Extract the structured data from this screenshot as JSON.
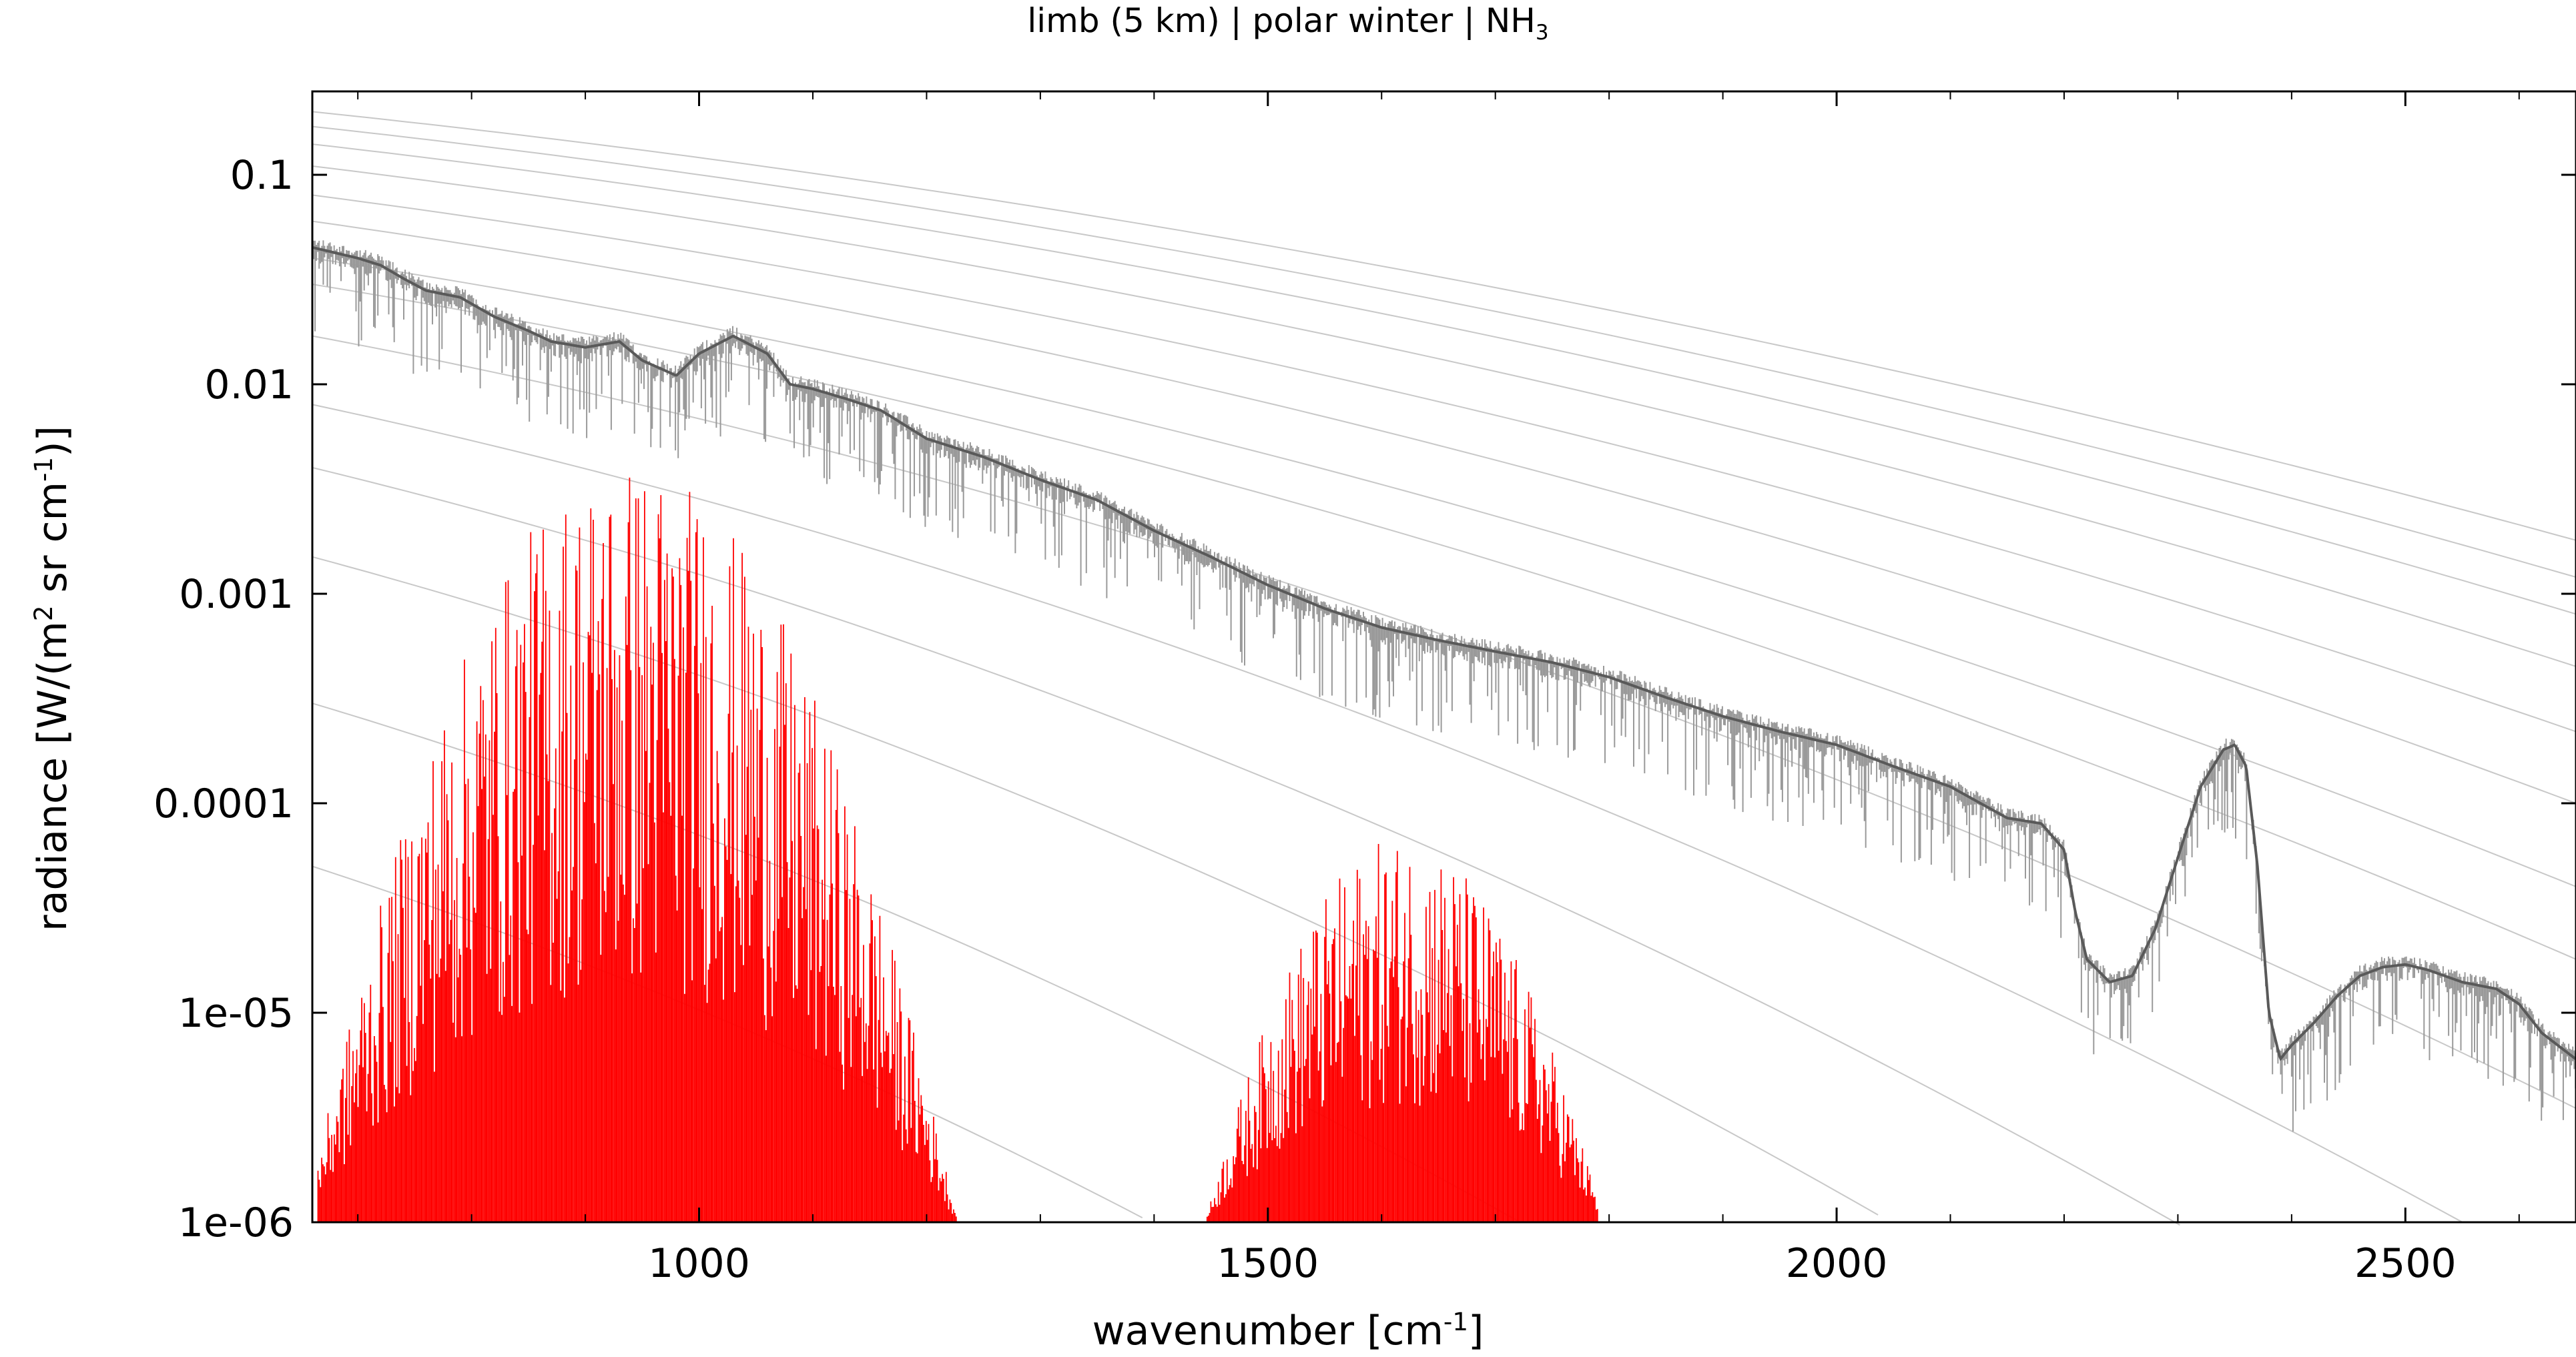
{
  "title": {
    "main": "limb (5 km) | polar winter | NH",
    "sub": "3"
  },
  "xlabel": {
    "main": "wavenumber [cm",
    "sup": "-1",
    "end": "]"
  },
  "ylabel": {
    "main": "radiance [W/(m",
    "sup1": "2",
    "mid": " sr cm",
    "sup2": "-1",
    "end": ")]"
  },
  "colors": {
    "spectrum_dark": "#595959",
    "spectrum_light": "#9a9a9a",
    "nh3_contribution": "#ff0000",
    "planck_curves": "#c8c8c8",
    "axis": "#000000"
  },
  "chart_data": {
    "type": "line",
    "x_scale": "linear",
    "y_scale": "log",
    "xlim": [
      660,
      2650
    ],
    "ylim": [
      1e-06,
      0.25
    ],
    "grid": false,
    "x_ticks": [
      {
        "value": 1000,
        "label": "1000"
      },
      {
        "value": 1500,
        "label": "1500"
      },
      {
        "value": 2000,
        "label": "2000"
      },
      {
        "value": 2500,
        "label": "2500"
      }
    ],
    "y_ticks": [
      {
        "value": 0.1,
        "label": "0.1"
      },
      {
        "value": 0.01,
        "label": "0.01"
      },
      {
        "value": 0.001,
        "label": "0.001"
      },
      {
        "value": 0.0001,
        "label": "0.0001"
      },
      {
        "value": 1e-05,
        "label": "1e-05"
      },
      {
        "value": 1e-06,
        "label": "1e-06"
      }
    ],
    "series": [
      {
        "role": "total radiance (dark)",
        "x": [
          660,
          700,
          720,
          740,
          760,
          790,
          820,
          850,
          870,
          900,
          930,
          950,
          980,
          1000,
          1030,
          1060,
          1080,
          1100,
          1130,
          1160,
          1200,
          1250,
          1300,
          1350,
          1400,
          1450,
          1500,
          1550,
          1580,
          1600,
          1650,
          1700,
          1750,
          1800,
          1850,
          1900,
          1950,
          2000,
          2050,
          2100,
          2150,
          2180,
          2200,
          2210,
          2220,
          2240,
          2260,
          2280,
          2300,
          2320,
          2340,
          2350,
          2360,
          2370,
          2380,
          2390,
          2400,
          2420,
          2440,
          2460,
          2480,
          2500,
          2520,
          2550,
          2580,
          2600,
          2620,
          2650
        ],
        "y": [
          0.045,
          0.04,
          0.037,
          0.032,
          0.028,
          0.026,
          0.021,
          0.018,
          0.016,
          0.015,
          0.016,
          0.013,
          0.011,
          0.014,
          0.017,
          0.014,
          0.01,
          0.0095,
          0.0085,
          0.0075,
          0.0055,
          0.0045,
          0.0035,
          0.0028,
          0.002,
          0.0015,
          0.0011,
          0.00085,
          0.00075,
          0.00069,
          0.0006,
          0.00053,
          0.00047,
          0.0004,
          0.00032,
          0.00026,
          0.00022,
          0.00019,
          0.00015,
          0.00012,
          8.5e-05,
          8e-05,
          6e-05,
          3e-05,
          1.8e-05,
          1.4e-05,
          1.5e-05,
          2.5e-05,
          5.5e-05,
          0.00012,
          0.00018,
          0.00019,
          0.00015,
          5e-05,
          1e-05,
          6e-06,
          7e-06,
          9e-06,
          1.2e-05,
          1.5e-05,
          1.65e-05,
          1.7e-05,
          1.6e-05,
          1.4e-05,
          1.3e-05,
          1.1e-05,
          8e-06,
          6e-06
        ]
      },
      {
        "role": "NH3 contribution (red)",
        "bands": [
          {
            "x_range": [
              665,
              1240
            ],
            "center": 940,
            "peak": 0.0045,
            "floor": 1e-06
          },
          {
            "x_range": [
              1440,
              1790
            ],
            "center": 1620,
            "peak": 7e-05,
            "floor": 1e-06
          }
        ]
      },
      {
        "role": "reference curves (gray)",
        "curves": [
          {
            "y_at_660": 0.2,
            "y_at_2650": 0.0018
          },
          {
            "y_at_660": 0.17,
            "y_at_2650": 0.0012
          },
          {
            "y_at_660": 0.14,
            "y_at_2650": 0.0008
          },
          {
            "y_at_660": 0.11,
            "y_at_2650": 0.00045
          },
          {
            "y_at_660": 0.08,
            "y_at_2650": 0.00022
          },
          {
            "y_at_660": 0.06,
            "y_at_2650": 0.0001
          },
          {
            "y_at_660": 0.04,
            "y_at_2650": 4e-05
          },
          {
            "y_at_660": 0.03,
            "y_at_2650": 1.8e-05
          },
          {
            "y_at_660": 0.017,
            "y_at_2650": 3.5e-06
          },
          {
            "y_at_660": 0.008,
            "y_at_2650": 5e-07
          },
          {
            "y_at_660": 0.004,
            "y_at_2650": 7e-08
          },
          {
            "y_at_660": 0.0015,
            "y_at_2650": 8e-09
          },
          {
            "y_at_660": 0.0003,
            "y_at_2650": 4e-10
          },
          {
            "y_at_660": 5e-05,
            "y_at_2650": 2e-11
          }
        ]
      }
    ]
  }
}
